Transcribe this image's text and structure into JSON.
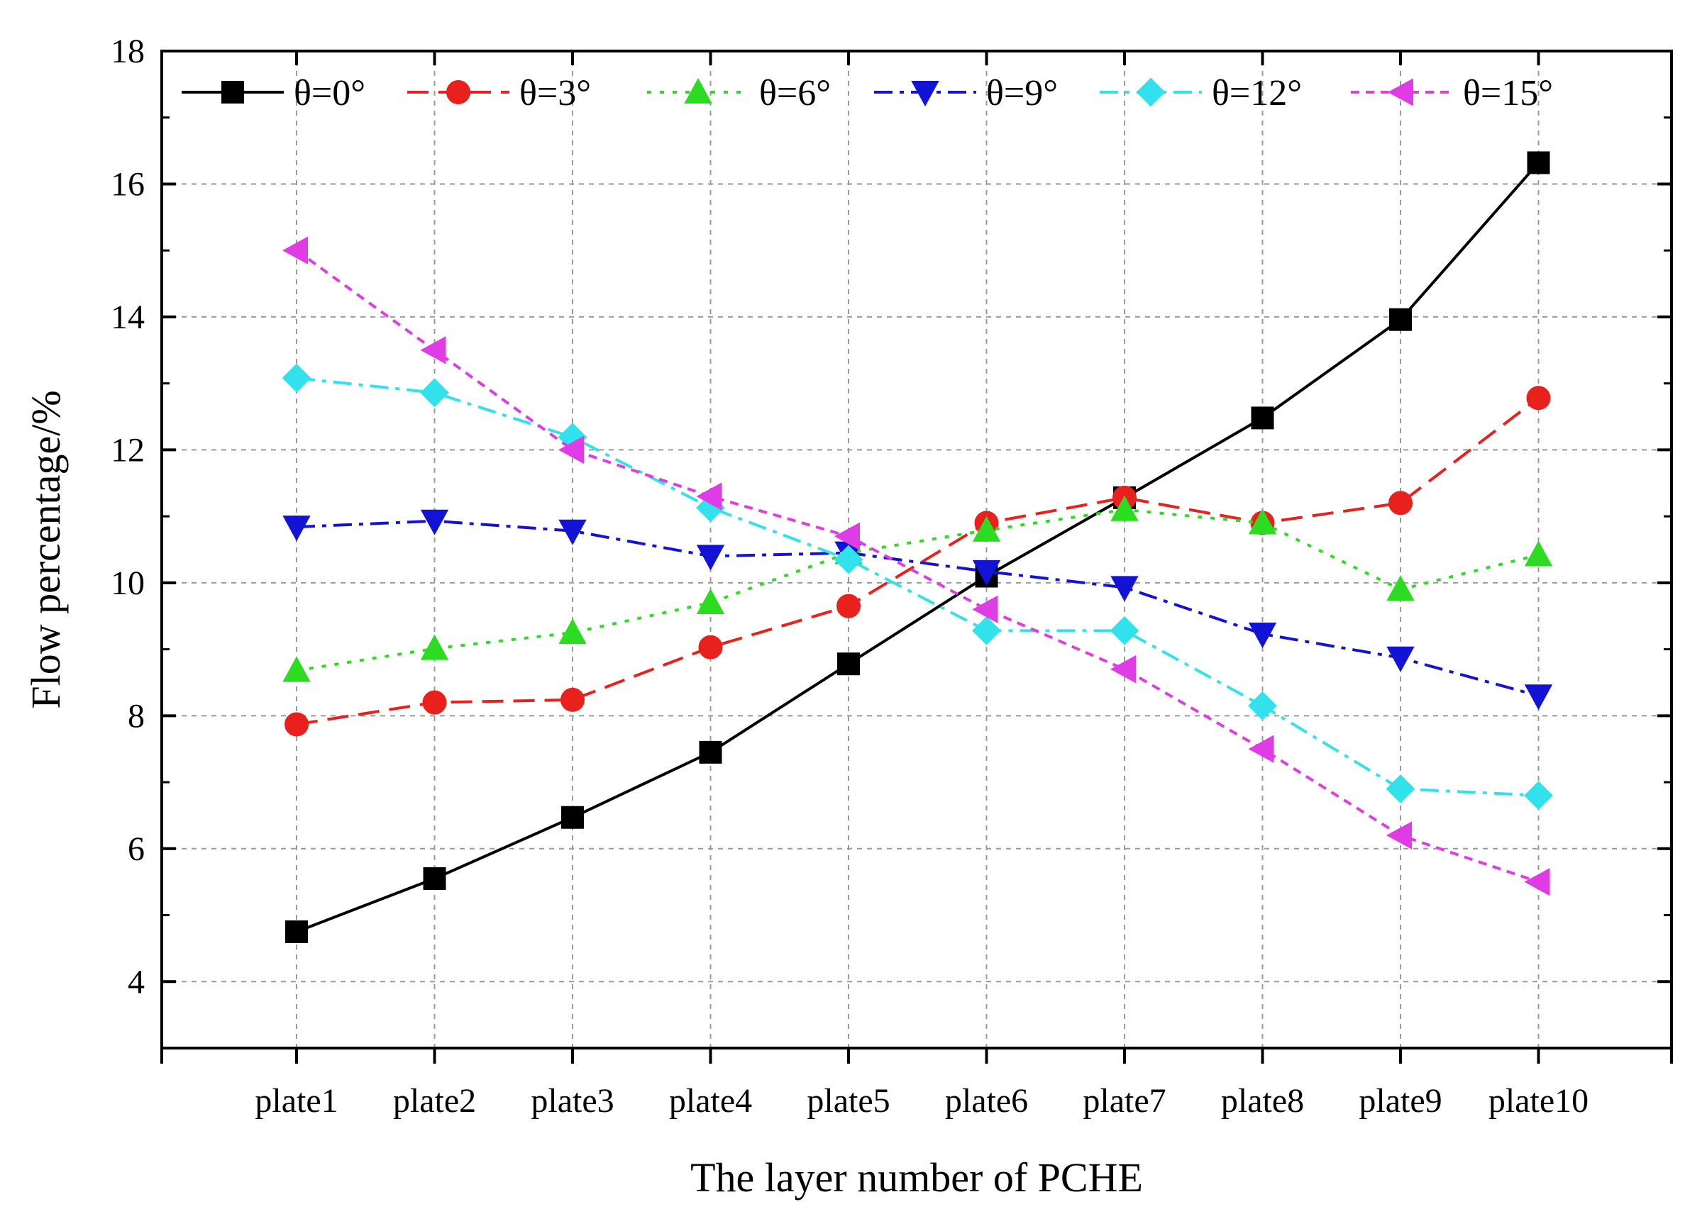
{
  "chart_data": {
    "type": "line",
    "title": "",
    "xlabel": "The layer number of PCHE",
    "ylabel": "Flow percentage/%",
    "categories": [
      "plate1",
      "plate2",
      "plate3",
      "plate4",
      "plate5",
      "plate6",
      "plate7",
      "plate8",
      "plate9",
      "plate10"
    ],
    "ylim": [
      3,
      18
    ],
    "yticks": [
      4,
      6,
      8,
      10,
      12,
      14,
      16,
      18
    ],
    "grid": true,
    "legend_position": "top",
    "series": [
      {
        "name": "θ=0°",
        "color": "#000000",
        "marker": "square",
        "dash": "solid",
        "values": [
          4.75,
          5.55,
          6.47,
          7.45,
          8.78,
          10.1,
          11.28,
          12.48,
          13.96,
          16.32
        ]
      },
      {
        "name": "θ=3°",
        "color": "#e8211d",
        "marker": "circle",
        "dash": "dash",
        "values": [
          7.87,
          8.2,
          8.24,
          9.03,
          9.65,
          10.9,
          11.28,
          10.9,
          11.2,
          12.78
        ]
      },
      {
        "name": "θ=6°",
        "color": "#2bdc20",
        "marker": "triangle-up",
        "dash": "dot",
        "values": [
          8.68,
          9.01,
          9.25,
          9.7,
          10.45,
          10.79,
          11.1,
          10.9,
          9.9,
          10.42
        ]
      },
      {
        "name": "θ=9°",
        "color": "#1313d6",
        "marker": "triangle-down",
        "dash": "dashdot",
        "values": [
          10.84,
          10.93,
          10.78,
          10.4,
          10.45,
          10.17,
          9.93,
          9.23,
          8.87,
          8.3
        ]
      },
      {
        "name": "θ=12°",
        "color": "#31e2ec",
        "marker": "diamond",
        "dash": "dashdot",
        "values": [
          13.08,
          12.86,
          12.19,
          11.13,
          10.35,
          9.28,
          9.28,
          8.15,
          6.9,
          6.8
        ]
      },
      {
        "name": "θ=15°",
        "color": "#e03ce6",
        "marker": "triangle-left",
        "dash": "shortdash",
        "values": [
          15.0,
          13.5,
          12.0,
          11.3,
          10.7,
          9.6,
          8.7,
          7.5,
          6.2,
          5.5
        ]
      }
    ]
  }
}
